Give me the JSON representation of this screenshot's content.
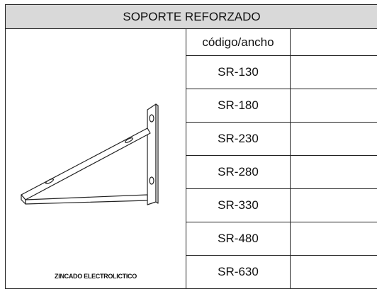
{
  "header": {
    "title": "SOPORTE REFORZADO"
  },
  "table": {
    "column_header": "código/ancho",
    "rows": [
      "SR-130",
      "SR-180",
      "SR-230",
      "SR-280",
      "SR-330",
      "SR-480",
      "SR-630"
    ]
  },
  "image": {
    "caption": "ZINCADO ELECTROLICTICO"
  }
}
